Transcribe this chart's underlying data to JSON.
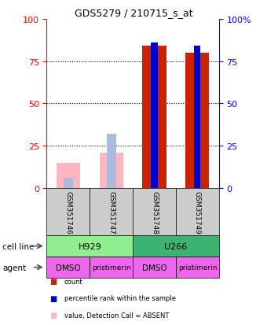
{
  "title": "GDS5279 / 210715_s_at",
  "samples": [
    "GSM351746",
    "GSM351747",
    "GSM351748",
    "GSM351749"
  ],
  "cell_lines": [
    "H929",
    "H929",
    "U266",
    "U266"
  ],
  "agents": [
    "DMSO",
    "pristimerin",
    "DMSO",
    "pristimerin"
  ],
  "cell_line_colors": {
    "H929": "#90EE90",
    "U266": "#3CB371"
  },
  "agent_color": "#EE66EE",
  "bar_absent_value": [
    15,
    21,
    0,
    0
  ],
  "bar_absent_rank": [
    6,
    32,
    0,
    0
  ],
  "bar_present_value": [
    0,
    0,
    84,
    80
  ],
  "bar_present_rank": [
    0,
    0,
    86,
    84
  ],
  "count_color": "#CC2200",
  "rank_color": "#0000CC",
  "absent_value_color": "#FFB6C1",
  "absent_rank_color": "#AABBDD",
  "ylim": [
    0,
    100
  ],
  "yticks": [
    0,
    25,
    50,
    75,
    100
  ],
  "background_color": "#ffffff",
  "plot_bg": "#ffffff"
}
